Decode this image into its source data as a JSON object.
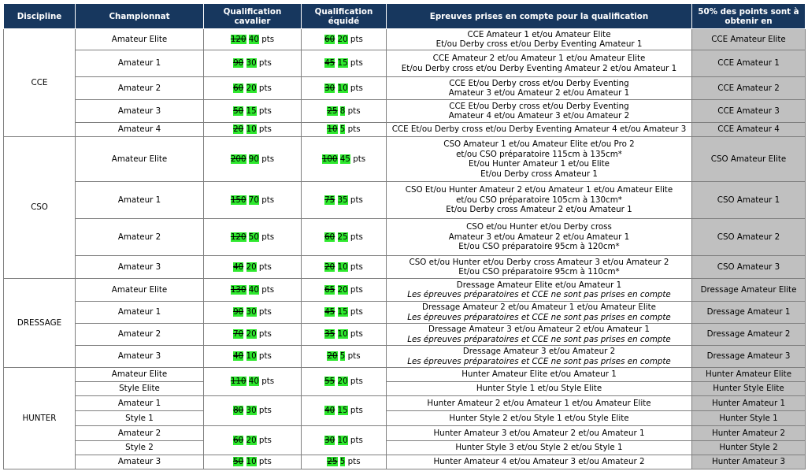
{
  "headers": {
    "discipline": "Discipline",
    "championnat": "Championnat",
    "qual_cavalier": "Qualification cavalier",
    "qual_equide": "Qualification équidé",
    "epreuves": "Epreuves prises en compte pour la qualification",
    "fifty": "50% des points sont à obtenir en"
  },
  "pts_label": "pts",
  "disciplines": [
    {
      "name": "CCE",
      "rows": [
        {
          "champ": "Amateur Elite",
          "cav_old": "120",
          "cav_new": "40",
          "eq_old": "60",
          "eq_new": "20",
          "epreuves": [
            "CCE Amateur 1 et/ou Amateur Elite",
            "Et/ou Derby cross et/ou Derby Eventing Amateur 1"
          ],
          "fifty": "CCE Amateur Elite",
          "h": 27
        },
        {
          "champ": "Amateur 1",
          "cav_old": "90",
          "cav_new": "30",
          "eq_old": "45",
          "eq_new": "15",
          "epreuves": [
            "CCE Amateur 2 et/ou Amateur 1 et/ou Amateur Elite",
            "Et/ou Derby cross et/ou Derby Eventing Amateur 2 et/ou Amateur 1"
          ],
          "fifty": "CCE Amateur 1",
          "h": 34
        },
        {
          "champ": "Amateur 2",
          "cav_old": "60",
          "cav_new": "20",
          "eq_old": "30",
          "eq_new": "10",
          "epreuves": [
            "CCE Et/ou Derby cross et/ou Derby Eventing",
            "Amateur 3 et/ou Amateur 2 et/ou Amateur 1"
          ],
          "fifty": "CCE Amateur 2",
          "h": 29
        },
        {
          "champ": "Amateur 3",
          "cav_old": "50",
          "cav_new": "15",
          "eq_old": "25",
          "eq_new": "8",
          "epreuves": [
            "CCE Et/ou Derby cross et/ou Derby Eventing",
            "Amateur 4 et/ou Amateur 3 et/ou Amateur 2"
          ],
          "fifty": "CCE Amateur 3",
          "h": 29
        },
        {
          "champ": "Amateur 4",
          "cav_old": "20",
          "cav_new": "10",
          "eq_old": "10",
          "eq_new": "5",
          "epreuves": [
            "CCE Et/ou Derby cross et/ou Derby Eventing Amateur 4 et/ou Amateur 3"
          ],
          "fifty": "CCE Amateur 4",
          "h": 18
        }
      ]
    },
    {
      "name": "CSO",
      "rows": [
        {
          "champ": "Amateur Elite",
          "cav_old": "200",
          "cav_new": "90",
          "eq_old": "100",
          "eq_new": "45",
          "epreuves": [
            "CSO Amateur 1 et/ou Amateur Elite et/ou Pro 2",
            "et/ou CSO préparatoire 115cm à 135cm*",
            "Et/ou Hunter Amateur 1 et/ou Elite",
            "Et/ou Derby cross Amateur 1"
          ],
          "fifty": "CSO Amateur Elite",
          "h": 57
        },
        {
          "champ": "Amateur 1",
          "cav_old": "150",
          "cav_new": "70",
          "eq_old": "75",
          "eq_new": "35",
          "epreuves": [
            "CSO Et/ou Hunter Amateur 2 et/ou Amateur 1 et/ou Amateur Elite",
            "et/ou CSO préparatoire 105cm à 130cm*",
            "Et/ou Derby cross Amateur 2 et/ou Amateur 1"
          ],
          "fifty": "CSO Amateur 1",
          "h": 47
        },
        {
          "champ": "Amateur 2",
          "cav_old": "120",
          "cav_new": "50",
          "eq_old": "60",
          "eq_new": "25",
          "epreuves": [
            "CSO et/ou Hunter et/ou Derby cross",
            "Amateur 3 et/ou Amateur 2 et/ou Amateur 1",
            "Et/ou CSO préparatoire 95cm à 120cm*"
          ],
          "fifty": "CSO Amateur 2",
          "h": 47
        },
        {
          "champ": "Amateur 3",
          "cav_old": "40",
          "cav_new": "20",
          "eq_old": "20",
          "eq_new": "10",
          "epreuves": [
            "CSO et/ou Hunter et/ou Derby cross Amateur 3 et/ou Amateur 2",
            "Et/ou CSO préparatoire 95cm à 110cm*"
          ],
          "fifty": "CSO Amateur 3",
          "h": 29
        }
      ]
    },
    {
      "name": "DRESSAGE",
      "rows": [
        {
          "champ": "Amateur Elite",
          "cav_old": "130",
          "cav_new": "40",
          "eq_old": "65",
          "eq_new": "20",
          "epreuves": [
            "Dressage Amateur Elite et/ou Amateur 1"
          ],
          "note": "Les épreuves préparatoires et CCE ne sont pas prises en compte",
          "fifty": "Dressage Amateur Elite",
          "h": 29
        },
        {
          "champ": "Amateur 1",
          "cav_old": "90",
          "cav_new": "30",
          "eq_old": "45",
          "eq_new": "15",
          "epreuves": [
            "Dressage Amateur 2 et/ou Amateur 1 et/ou Amateur Elite"
          ],
          "note": "Les épreuves préparatoires et CCE ne sont pas prises en compte",
          "fifty": "Dressage Amateur 1",
          "h": 28
        },
        {
          "champ": "Amateur 2",
          "cav_old": "70",
          "cav_new": "20",
          "eq_old": "35",
          "eq_new": "10",
          "epreuves": [
            "Dressage Amateur 3 et/ou Amateur 2 et/ou Amateur 1"
          ],
          "note": "Les épreuves préparatoires et CCE ne sont pas prises en compte",
          "fifty": "Dressage Amateur 2",
          "h": 28
        },
        {
          "champ": "Amateur 3",
          "cav_old": "40",
          "cav_new": "10",
          "eq_old": "20",
          "eq_new": "5",
          "epreuves": [
            "Dressage Amateur 3 et/ou Amateur 2"
          ],
          "note": "Les épreuves préparatoires et CCE ne sont pas prises en compte",
          "fifty": "Dressage Amateur 3",
          "h": 28
        }
      ]
    },
    {
      "name": "HUNTER",
      "rows": [
        {
          "champ": "Amateur Elite",
          "cav_old": "110",
          "cav_new": "40",
          "eq_old": "55",
          "eq_new": "20",
          "span": 2,
          "epreuves": [
            "Hunter Amateur Elite et/ou Amateur 1"
          ],
          "fifty": "Hunter Amateur Elite",
          "h": 18
        },
        {
          "champ": "Style Elite",
          "epreuves": [
            "Hunter Style 1 et/ou Style Elite"
          ],
          "fifty": "Hunter Style Elite",
          "h": 18
        },
        {
          "champ": "Amateur 1",
          "cav_old": "80",
          "cav_new": "30",
          "eq_old": "40",
          "eq_new": "15",
          "span": 2,
          "epreuves": [
            "Hunter Amateur 2 et/ou Amateur 1 et/ou Amateur Elite"
          ],
          "fifty": "Hunter Amateur 1",
          "h": 19
        },
        {
          "champ": "Style 1",
          "epreuves": [
            "Hunter Style 2 et/ou Style 1 et/ou Style Elite"
          ],
          "fifty": "Hunter Style 1",
          "h": 19
        },
        {
          "champ": "Amateur 2",
          "cav_old": "60",
          "cav_new": "20",
          "eq_old": "30",
          "eq_new": "10",
          "span": 2,
          "epreuves": [
            "Hunter Amateur 3 et/ou Amateur 2 et/ou Amateur 1"
          ],
          "fifty": "Hunter Amateur 2",
          "h": 19
        },
        {
          "champ": "Style 2",
          "epreuves": [
            "Hunter Style 3 et/ou Style 2 et/ou Style 1"
          ],
          "fifty": "Hunter Style 2",
          "h": 18
        },
        {
          "champ": "Amateur 3",
          "cav_old": "50",
          "cav_new": "10",
          "eq_old": "25",
          "eq_new": "5",
          "span": 1,
          "epreuves": [
            "Hunter Amateur 4 et/ou Amateur 3 et/ou Amateur 2"
          ],
          "fifty": "Hunter Amateur 3",
          "h": 18
        }
      ]
    }
  ]
}
